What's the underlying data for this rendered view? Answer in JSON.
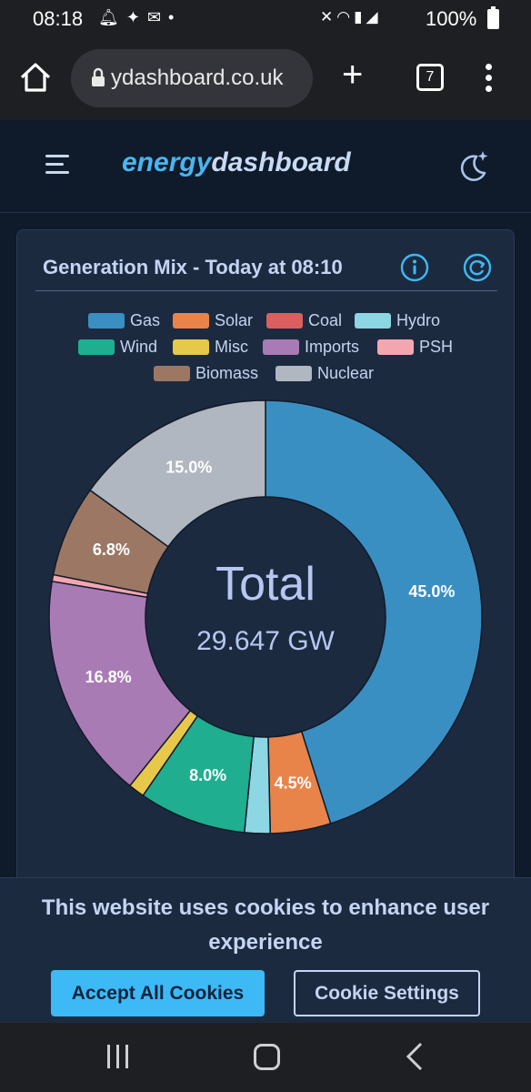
{
  "status_bar": {
    "time": "08:18",
    "notification_icons": [
      "bell-icon",
      "twitter-icon",
      "mail-icon",
      "dot-icon"
    ],
    "system_icons": [
      "mute-icon",
      "wifi-icon",
      "volte-icon",
      "signal-icon"
    ],
    "battery": "100%"
  },
  "browser": {
    "url": "ydashboard.co.uk",
    "tab_count": "7"
  },
  "site": {
    "brand_part1": "energy",
    "brand_part2": "dashboard"
  },
  "card": {
    "title": "Generation Mix - Today at 08:10"
  },
  "chart_data": {
    "type": "pie",
    "title": "Generation Mix - Today at 08:10",
    "center_label": "Total",
    "center_value": "29.647 GW",
    "legend": [
      "Gas",
      "Solar",
      "Coal",
      "Hydro",
      "Wind",
      "Misc",
      "Imports",
      "PSH",
      "Biomass",
      "Nuclear"
    ],
    "series": [
      {
        "name": "Gas",
        "value": 45.0,
        "color": "#3a8fc2",
        "label": "45.0%"
      },
      {
        "name": "Solar",
        "value": 4.5,
        "color": "#e8844a",
        "label": "4.5%"
      },
      {
        "name": "Coal",
        "value": 0.0,
        "color": "#d9605f",
        "label": ""
      },
      {
        "name": "Hydro",
        "value": 1.9,
        "color": "#8dd6e3",
        "label": ""
      },
      {
        "name": "Wind",
        "value": 8.0,
        "color": "#1fae8f",
        "label": "8.0%"
      },
      {
        "name": "Misc",
        "value": 1.2,
        "color": "#e8c84a",
        "label": ""
      },
      {
        "name": "Imports",
        "value": 16.8,
        "color": "#a97bb5",
        "label": "16.8%"
      },
      {
        "name": "PSH",
        "value": 0.5,
        "color": "#f4a6b0",
        "label": ""
      },
      {
        "name": "Biomass",
        "value": 6.8,
        "color": "#9c7864",
        "label": "6.8%"
      },
      {
        "name": "Nuclear",
        "value": 15.0,
        "color": "#b1b7c0",
        "label": "15.0%"
      }
    ]
  },
  "cookie_banner": {
    "text": "This website uses cookies to enhance user experience",
    "accept_label": "Accept All Cookies",
    "settings_label": "Cookie Settings"
  }
}
